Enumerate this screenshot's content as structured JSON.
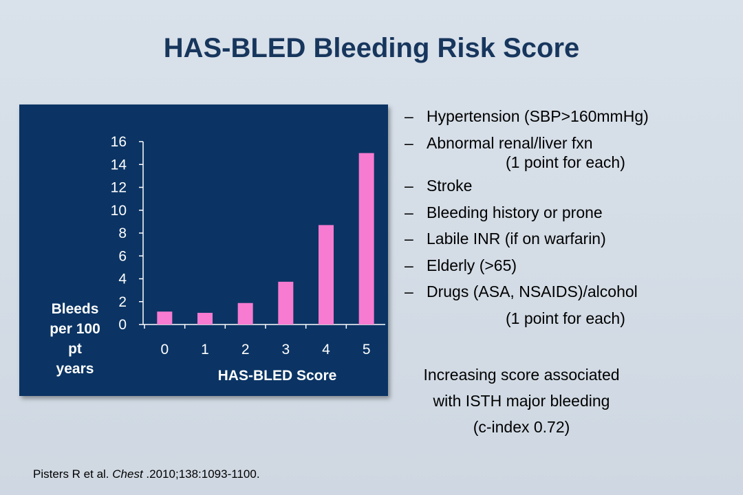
{
  "title": "HAS-BLED Bleeding Risk Score",
  "chart_data": {
    "type": "bar",
    "categories": [
      "0",
      "1",
      "2",
      "3",
      "4",
      "5"
    ],
    "values": [
      1.13,
      1.02,
      1.88,
      3.74,
      8.7,
      15.0
    ],
    "xlabel": "HAS-BLED Score",
    "ylabel_lines": [
      "Bleeds",
      "per 100",
      "pt",
      "years"
    ],
    "ylim": [
      0,
      16
    ],
    "yticks": [
      0,
      2,
      4,
      6,
      8,
      10,
      12,
      14,
      16
    ],
    "grid": false,
    "bar_color": "#f77bd0",
    "background_color": "#0b3464",
    "axis_color": "#ffffff"
  },
  "criteria": [
    {
      "text": "Hypertension (SBP>160mmHg)"
    },
    {
      "text": "Abnormal renal/liver fxn",
      "note": "(1 point for each)"
    },
    {
      "text": "Stroke"
    },
    {
      "text": "Bleeding history or prone"
    },
    {
      "text": "Labile INR (if on warfarin)"
    },
    {
      "text": "Elderly (>65)"
    },
    {
      "text": "Drugs (ASA, NSAIDS)/alcohol",
      "note": "(1 point for each)"
    }
  ],
  "dash": "–",
  "summary": {
    "line1": "Increasing score associated",
    "line2": "with ISTH major bleeding",
    "line3": "(c-index 0.72)"
  },
  "citation": {
    "authors": "Pisters R et al.",
    "journal": "Chest",
    "rest": " .2010;138:1093-1100."
  }
}
